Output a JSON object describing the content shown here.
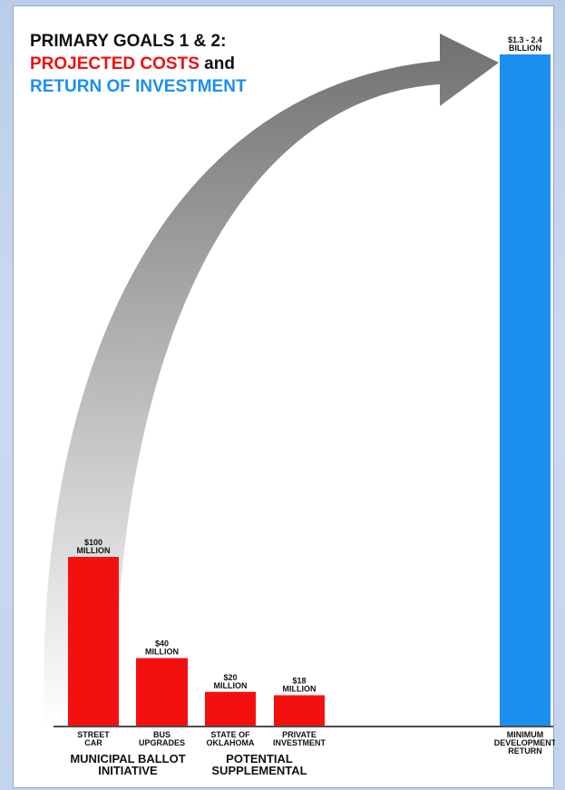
{
  "chart_data": {
    "type": "bar",
    "title": {
      "line1": "PRIMARY GOALS 1 & 2:",
      "line2_red": "PROJECTED COSTS",
      "line2_and": " and",
      "line3_blue": "RETURN OF INVESTMENT"
    },
    "unit_note": "values in $ millions",
    "bars": [
      {
        "label": [
          "STREET",
          "CAR"
        ],
        "value": 100,
        "value_label": [
          "$100",
          "MILLION"
        ],
        "color": "#f51010"
      },
      {
        "label": [
          "BUS",
          "UPGRADES"
        ],
        "value": 40,
        "value_label": [
          "$40",
          "MILLION"
        ],
        "color": "#f51010"
      },
      {
        "label": [
          "STATE OF",
          "OKLAHOMA"
        ],
        "value": 20,
        "value_label": [
          "$20",
          "MILLION"
        ],
        "color": "#f51010"
      },
      {
        "label": [
          "PRIVATE",
          "INVESTMENT"
        ],
        "value": 18,
        "value_label": [
          "$18",
          "MILLION"
        ],
        "color": "#f51010"
      },
      {
        "label": [
          "MINIMUM",
          "DEVELOPMENT",
          "RETURN"
        ],
        "value": 1300,
        "value_max": 2400,
        "value_label": [
          "$1.3 - 2.4",
          "BILLION"
        ],
        "color": "#1b8ff0"
      }
    ],
    "groups": [
      {
        "label": [
          "MUNICIPAL BALLOT",
          "INITIATIVE"
        ]
      },
      {
        "label": [
          "POTENTIAL",
          "SUPPLEMENTAL"
        ]
      }
    ],
    "ylim": [
      0,
      1300
    ],
    "axis_scale": "broken",
    "arrow": "curved gray arrow from cost bars to return bar"
  }
}
